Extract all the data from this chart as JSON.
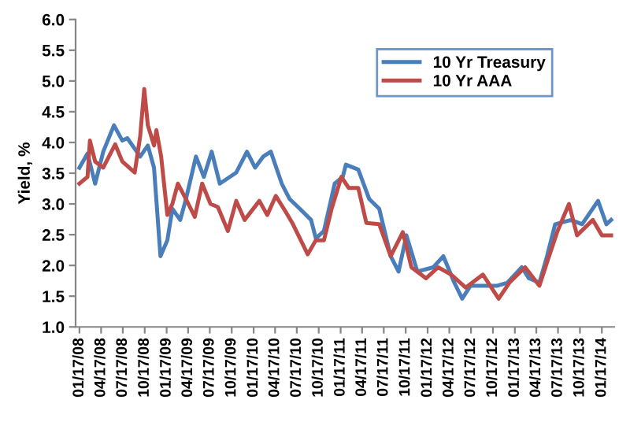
{
  "chart_data": {
    "type": "line",
    "ylabel": "Yield, %",
    "xlim": [
      "2008-01-01",
      "2014-03-10"
    ],
    "xticks": [
      {
        "value": "2008-01-17",
        "label": "01/17/08"
      },
      {
        "value": "2008-04-17",
        "label": "04/17/08"
      },
      {
        "value": "2008-07-17",
        "label": "07/17/08"
      },
      {
        "value": "2008-10-17",
        "label": "10/17/08"
      },
      {
        "value": "2009-01-17",
        "label": "01/17/09"
      },
      {
        "value": "2009-04-17",
        "label": "04/17/09"
      },
      {
        "value": "2009-07-17",
        "label": "07/17/09"
      },
      {
        "value": "2009-10-17",
        "label": "10/17/09"
      },
      {
        "value": "2010-01-17",
        "label": "01/17/10"
      },
      {
        "value": "2010-04-17",
        "label": "04/17/10"
      },
      {
        "value": "2010-07-17",
        "label": "07/17/10"
      },
      {
        "value": "2010-10-17",
        "label": "10/17/10"
      },
      {
        "value": "2011-01-17",
        "label": "01/17/11"
      },
      {
        "value": "2011-04-17",
        "label": "04/17/11"
      },
      {
        "value": "2011-07-17",
        "label": "07/17/11"
      },
      {
        "value": "2011-10-17",
        "label": "10/17/11"
      },
      {
        "value": "2012-01-17",
        "label": "01/17/12"
      },
      {
        "value": "2012-04-17",
        "label": "04/17/12"
      },
      {
        "value": "2012-07-17",
        "label": "07/17/12"
      },
      {
        "value": "2012-10-17",
        "label": "10/17/12"
      },
      {
        "value": "2013-01-17",
        "label": "01/17/13"
      },
      {
        "value": "2013-04-17",
        "label": "04/17/13"
      },
      {
        "value": "2013-07-17",
        "label": "07/17/13"
      },
      {
        "value": "2013-10-17",
        "label": "10/17/13"
      },
      {
        "value": "2014-01-17",
        "label": "01/17/14"
      }
    ],
    "ylim": [
      1.0,
      6.0
    ],
    "yticks": [
      {
        "value": 1.0,
        "label": "1.0"
      },
      {
        "value": 1.5,
        "label": "1.5"
      },
      {
        "value": 2.0,
        "label": "2.0"
      },
      {
        "value": 2.5,
        "label": "2.5"
      },
      {
        "value": 3.0,
        "label": "3.0"
      },
      {
        "value": 3.5,
        "label": "3.5"
      },
      {
        "value": 4.0,
        "label": "4.0"
      },
      {
        "value": 4.5,
        "label": "4.5"
      },
      {
        "value": 5.0,
        "label": "5.0"
      },
      {
        "value": 5.5,
        "label": "5.5"
      },
      {
        "value": 6.0,
        "label": "6.0"
      }
    ],
    "grid": false,
    "legend": "top right",
    "marker": "none",
    "line_style": "solid",
    "series": [
      {
        "name": "10 Yr Treasury",
        "color": "#4a7ebb",
        "x": [
          "2008-01-17",
          "2008-02-20",
          "2008-03-23",
          "2008-04-26",
          "2008-06-10",
          "2008-07-15",
          "2008-08-05",
          "2008-09-28",
          "2008-10-30",
          "2008-11-25",
          "2008-12-22",
          "2009-01-20",
          "2009-02-10",
          "2009-03-15",
          "2009-04-08",
          "2009-05-20",
          "2009-06-22",
          "2009-07-25",
          "2009-08-28",
          "2009-11-05",
          "2009-12-20",
          "2010-01-23",
          "2010-02-26",
          "2010-03-30",
          "2010-05-15",
          "2010-06-17",
          "2010-07-30",
          "2010-09-15",
          "2010-10-05",
          "2010-11-08",
          "2010-12-23",
          "2011-01-26",
          "2011-02-08",
          "2011-04-01",
          "2011-05-17",
          "2011-06-28",
          "2011-08-15",
          "2011-09-17",
          "2011-10-20",
          "2011-12-05",
          "2012-02-10",
          "2012-03-23",
          "2012-05-08",
          "2012-06-10",
          "2012-07-15",
          "2012-08-30",
          "2012-11-05",
          "2012-12-17",
          "2013-02-15",
          "2013-03-17",
          "2013-04-30",
          "2013-06-01",
          "2013-07-05",
          "2013-09-10",
          "2013-10-26",
          "2014-01-01",
          "2014-02-05",
          "2014-02-25"
        ],
        "values": [
          3.59,
          3.82,
          3.33,
          3.85,
          4.28,
          4.03,
          4.07,
          3.77,
          3.95,
          3.59,
          2.15,
          2.41,
          2.92,
          2.74,
          3.08,
          3.77,
          3.44,
          3.85,
          3.33,
          3.51,
          3.85,
          3.59,
          3.77,
          3.85,
          3.33,
          3.08,
          2.92,
          2.74,
          2.44,
          2.56,
          3.33,
          3.44,
          3.64,
          3.56,
          3.08,
          2.92,
          2.15,
          1.9,
          2.49,
          1.9,
          1.97,
          2.15,
          1.72,
          1.46,
          1.67,
          1.67,
          1.67,
          1.72,
          1.97,
          1.79,
          1.72,
          2.15,
          2.67,
          2.74,
          2.67,
          3.05,
          2.67,
          2.74
        ]
      },
      {
        "name": "10 Yr AAA",
        "color": "#be4b48",
        "x": [
          "2008-01-17",
          "2008-02-20",
          "2008-03-01",
          "2008-03-23",
          "2008-04-26",
          "2008-06-15",
          "2008-07-15",
          "2008-09-05",
          "2008-09-28",
          "2008-10-15",
          "2008-10-30",
          "2008-11-25",
          "2008-12-05",
          "2008-12-25",
          "2009-01-20",
          "2009-02-10",
          "2009-03-05",
          "2009-04-08",
          "2009-05-15",
          "2009-06-15",
          "2009-07-20",
          "2009-08-20",
          "2009-10-01",
          "2009-11-05",
          "2009-12-10",
          "2010-02-10",
          "2010-03-15",
          "2010-04-20",
          "2010-06-01",
          "2010-07-01",
          "2010-09-01",
          "2010-10-05",
          "2010-11-08",
          "2010-12-10",
          "2011-01-20",
          "2011-02-20",
          "2011-04-01",
          "2011-05-05",
          "2011-06-28",
          "2011-08-15",
          "2011-10-05",
          "2011-11-10",
          "2012-01-10",
          "2012-03-01",
          "2012-04-25",
          "2012-06-25",
          "2012-09-05",
          "2012-11-10",
          "2012-12-25",
          "2013-03-01",
          "2013-04-30",
          "2013-06-01",
          "2013-07-15",
          "2013-09-01",
          "2013-10-05",
          "2013-12-10",
          "2014-01-17",
          "2014-02-25"
        ],
        "values": [
          3.33,
          3.44,
          4.03,
          3.69,
          3.59,
          3.97,
          3.69,
          3.51,
          4.1,
          4.87,
          4.28,
          3.95,
          4.2,
          3.77,
          2.82,
          3.0,
          3.33,
          3.08,
          2.79,
          3.33,
          3.0,
          2.95,
          2.56,
          3.05,
          2.74,
          3.05,
          2.82,
          3.13,
          2.87,
          2.67,
          2.18,
          2.41,
          2.41,
          2.92,
          3.44,
          3.26,
          3.26,
          2.69,
          2.67,
          2.15,
          2.54,
          1.97,
          1.79,
          1.97,
          1.85,
          1.64,
          1.85,
          1.46,
          1.72,
          1.97,
          1.67,
          2.05,
          2.56,
          3.0,
          2.49,
          2.74,
          2.49,
          2.49
        ]
      }
    ]
  }
}
